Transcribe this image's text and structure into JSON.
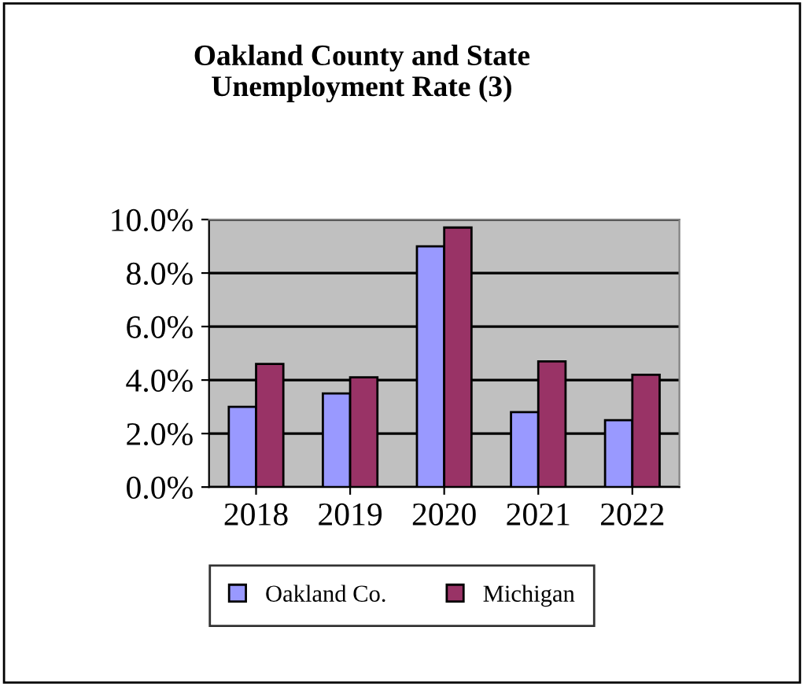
{
  "chart_data": {
    "type": "bar",
    "title": "Oakland County and State\nUnemployment Rate (3)",
    "categories": [
      "2018",
      "2019",
      "2020",
      "2021",
      "2022"
    ],
    "series": [
      {
        "name": "Oakland Co.",
        "color": "#9999ff",
        "values": [
          3.0,
          3.5,
          9.0,
          2.8,
          2.5
        ]
      },
      {
        "name": "Michigan",
        "color": "#993366",
        "values": [
          4.6,
          4.1,
          9.7,
          4.7,
          4.2
        ]
      }
    ],
    "ylim": [
      0,
      10
    ],
    "yticks": [
      {
        "value": 0,
        "label": "0.0%"
      },
      {
        "value": 2,
        "label": "2.0%"
      },
      {
        "value": 4,
        "label": "4.0%"
      },
      {
        "value": 6,
        "label": "6.0%"
      },
      {
        "value": 8,
        "label": "8.0%"
      },
      {
        "value": 10,
        "label": "10.0%"
      }
    ],
    "grid": "y",
    "legend": "bottom"
  }
}
